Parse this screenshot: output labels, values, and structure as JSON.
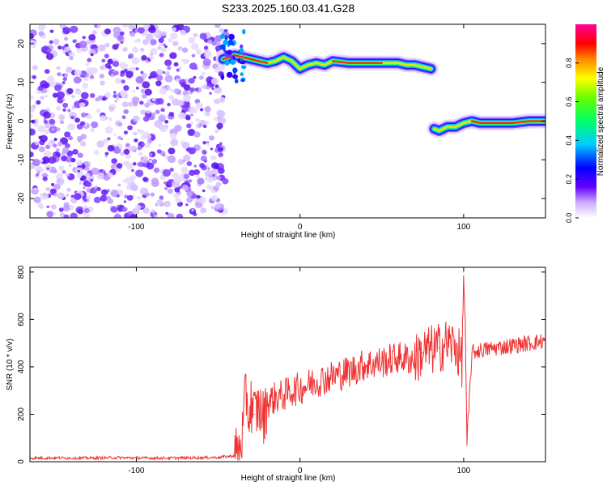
{
  "title": "S233.2025.160.03.41.G28",
  "chart_data": [
    {
      "type": "heatmap",
      "name": "spectrogram",
      "xlabel": "Height of straight line (km)",
      "ylabel": "Frequency (Hz)",
      "xlim": [
        -165,
        150
      ],
      "ylim": [
        -25,
        25
      ],
      "xticks": [
        -100,
        0,
        100
      ],
      "yticks": [
        -20,
        -10,
        0,
        10,
        20
      ],
      "noise_region_x": [
        -165,
        -47
      ],
      "ridge_segments": [
        {
          "x": [
            -47,
            -40,
            -35,
            -30,
            -25,
            -20,
            -15,
            -10,
            -5,
            0,
            5,
            10,
            15,
            20,
            30,
            40,
            50,
            60,
            65,
            70,
            75,
            80
          ],
          "y": [
            16,
            17,
            16.5,
            16,
            15.5,
            15,
            15.5,
            16.5,
            15.5,
            13.5,
            14.5,
            15,
            14.5,
            15.5,
            15,
            15,
            15,
            15,
            14.5,
            14.5,
            14,
            13.5
          ]
        },
        {
          "x": [
            82,
            85,
            90,
            95,
            100,
            105,
            110,
            120,
            130,
            140,
            150
          ],
          "y": [
            -2,
            -2.5,
            -1.5,
            -1.5,
            -0.5,
            0,
            -0.5,
            -0.5,
            -0.5,
            0,
            0
          ]
        }
      ],
      "colorbar": {
        "label": "Normalized spectral amplitude",
        "ticks": [
          0.0,
          0.2,
          0.4,
          0.6,
          0.8
        ]
      }
    },
    {
      "type": "line",
      "name": "snr",
      "xlabel": "Height of straight line (km)",
      "ylabel": "SNR (10 * v/v)",
      "xlim": [
        -165,
        150
      ],
      "ylim": [
        0,
        820
      ],
      "xticks": [
        -100,
        0,
        100
      ],
      "yticks": [
        0,
        200,
        400,
        600,
        800
      ],
      "series": [
        {
          "name": "SNR",
          "color": "#ee3333",
          "x": [
            -165,
            -150,
            -130,
            -110,
            -90,
            -70,
            -50,
            -40,
            -37,
            -35,
            -33,
            -31,
            -30,
            -28,
            -25,
            -22,
            -20,
            -15,
            -10,
            -5,
            0,
            10,
            20,
            30,
            40,
            50,
            60,
            70,
            75,
            80,
            85,
            90,
            95,
            99,
            100,
            101,
            102,
            105,
            110,
            120,
            130,
            140,
            150
          ],
          "y": [
            15,
            16,
            15,
            17,
            15,
            16,
            18,
            25,
            60,
            120,
            300,
            180,
            250,
            200,
            230,
            180,
            250,
            270,
            280,
            300,
            310,
            340,
            360,
            380,
            410,
            420,
            440,
            430,
            460,
            470,
            480,
            500,
            490,
            420,
            800,
            560,
            70,
            460,
            470,
            480,
            490,
            500,
            510
          ]
        }
      ]
    }
  ]
}
